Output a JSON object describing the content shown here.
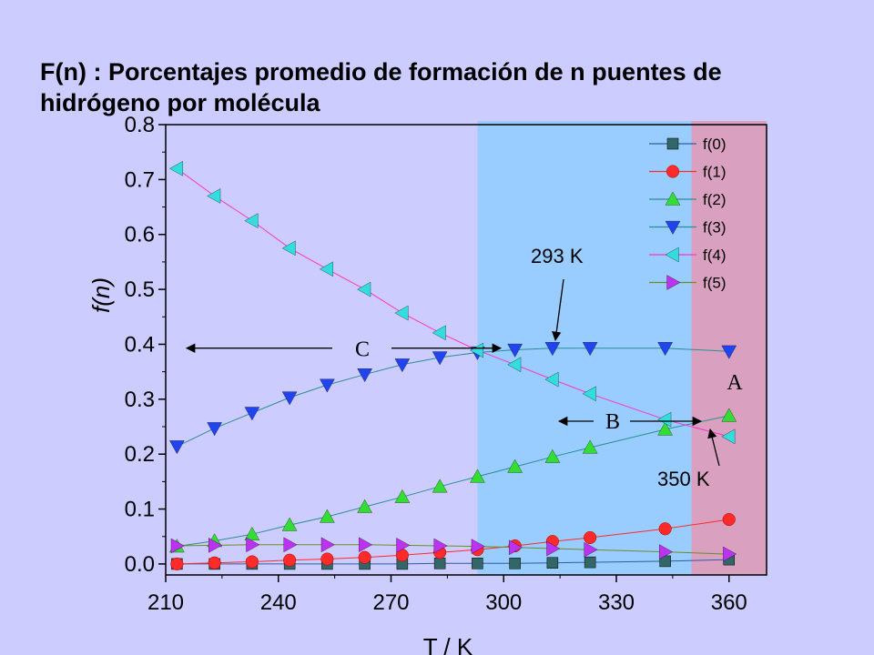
{
  "slide": {
    "title_line1": "F(n) : Porcentajes promedio de formación de n puentes de",
    "title_line2": "hidrógeno por molécula"
  },
  "chart_data": {
    "type": "line",
    "xlabel": "T / K",
    "ylabel": "f(n)",
    "xlim": [
      210,
      370
    ],
    "ylim": [
      -0.02,
      0.8
    ],
    "x_ticks": [
      210,
      240,
      270,
      300,
      330,
      360
    ],
    "x_tick_labels": [
      "210",
      "240",
      "270",
      "300",
      "330",
      "360"
    ],
    "y_ticks": [
      0.0,
      0.1,
      0.2,
      0.3,
      0.4,
      0.5,
      0.6,
      0.7,
      0.8
    ],
    "y_tick_labels": [
      "0.0",
      "0.1",
      "0.2",
      "0.3",
      "0.4",
      "0.5",
      "0.6",
      "0.7",
      "0.8"
    ],
    "grid": false,
    "legend_position": "top-right",
    "regions": [
      {
        "label": "C",
        "x_range": [
          210,
          293
        ],
        "color": "#ccccff"
      },
      {
        "label": "B",
        "x_range": [
          293,
          350
        ],
        "color": "#99ccff"
      },
      {
        "label": "A",
        "x_range": [
          350,
          370
        ],
        "color": "#d9a0c0"
      }
    ],
    "annotations": [
      {
        "text": "293 K",
        "x": 293,
        "y": 0.39
      },
      {
        "text": "350 K",
        "x": 350,
        "y": 0.24
      }
    ],
    "x": [
      213,
      223,
      233,
      243,
      253,
      263,
      273,
      283,
      293,
      303,
      313,
      323,
      343,
      360
    ],
    "series": [
      {
        "name": "f(0)",
        "color": "#336666",
        "line": "#2f5f9f",
        "marker": "square",
        "values": [
          0.0,
          0.0,
          0.0,
          0.0,
          0.0,
          0.0,
          0.0,
          0.001,
          0.001,
          0.001,
          0.002,
          0.003,
          0.005,
          0.008
        ]
      },
      {
        "name": "f(1)",
        "color": "#ff2a2a",
        "line": "#ff2a2a",
        "marker": "circle",
        "values": [
          0.0,
          0.002,
          0.004,
          0.007,
          0.009,
          0.012,
          0.016,
          0.021,
          0.026,
          0.033,
          0.041,
          0.048,
          0.064,
          0.081
        ]
      },
      {
        "name": "f(2)",
        "color": "#33dd33",
        "line": "#2a8f8f",
        "marker": "triangle-up",
        "values": [
          0.032,
          0.042,
          0.054,
          0.071,
          0.086,
          0.104,
          0.122,
          0.141,
          0.159,
          0.177,
          0.195,
          0.212,
          0.245,
          0.27
        ]
      },
      {
        "name": "f(3)",
        "color": "#2244ee",
        "line": "#2a8f8f",
        "marker": "triangle-down",
        "values": [
          0.214,
          0.247,
          0.275,
          0.303,
          0.326,
          0.345,
          0.363,
          0.376,
          0.385,
          0.39,
          0.393,
          0.393,
          0.393,
          0.387
        ]
      },
      {
        "name": "f(4)",
        "color": "#33dddd",
        "line": "#ff33cc",
        "marker": "triangle-left",
        "values": [
          0.72,
          0.67,
          0.625,
          0.575,
          0.537,
          0.5,
          0.457,
          0.421,
          0.389,
          0.363,
          0.336,
          0.31,
          0.263,
          0.232
        ]
      },
      {
        "name": "f(5)",
        "color": "#bb33ee",
        "line": "#6b8e23",
        "marker": "triangle-right",
        "values": [
          0.033,
          0.034,
          0.035,
          0.035,
          0.035,
          0.035,
          0.034,
          0.033,
          0.032,
          0.03,
          0.028,
          0.026,
          0.022,
          0.018
        ]
      }
    ]
  }
}
